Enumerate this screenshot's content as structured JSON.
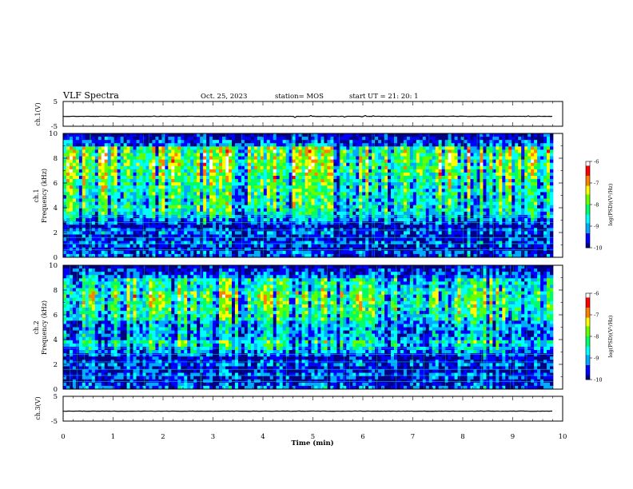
{
  "header": {
    "title": "VLF Spectra",
    "date": "Oct. 25, 2023",
    "station": "station= MOS",
    "start": "start  UT =   21: 20: 1"
  },
  "chart_data": [
    {
      "type": "line",
      "name": "ch1-voltage",
      "ylabel": "ch.1(V)",
      "ylim": [
        -5,
        5
      ],
      "yticks": [
        "5",
        "-5"
      ],
      "xlim": [
        0,
        10
      ],
      "baseline": -1.0
    },
    {
      "type": "heatmap",
      "name": "ch1-spectrogram",
      "ylabel": "ch.1 Frequency (kHz)",
      "ylabel_top": "ch.1",
      "ylabel_bottom": "Frequency (kHz)",
      "ylim": [
        0,
        10
      ],
      "yticks": [
        "0",
        "2",
        "4",
        "6",
        "8",
        "10"
      ],
      "xlim": [
        0,
        10
      ],
      "colorbar": {
        "label": "log(PSD)(V²/Hz)",
        "ticks": [
          "-6",
          "-7",
          "-8",
          "-9",
          "-10"
        ],
        "range": [
          -10,
          -6
        ]
      }
    },
    {
      "type": "heatmap",
      "name": "ch2-spectrogram",
      "ylabel": "ch.2 Frequency (kHz)",
      "ylabel_top": "ch.2",
      "ylabel_bottom": "Frequency (kHz)",
      "ylim": [
        0,
        10
      ],
      "yticks": [
        "0",
        "2",
        "4",
        "6",
        "8",
        "10"
      ],
      "xlim": [
        0,
        10
      ],
      "colorbar": {
        "label": "log(PSD)(V²/Hz)",
        "ticks": [
          "-6",
          "-7",
          "-8",
          "-9",
          "-10"
        ],
        "range": [
          -10,
          -6
        ]
      }
    },
    {
      "type": "line",
      "name": "ch3-voltage",
      "ylabel": "ch.3(V)",
      "ylim": [
        -5,
        5
      ],
      "yticks": [
        "5",
        "-5"
      ],
      "xlim": [
        0,
        10
      ],
      "baseline": -1.0
    }
  ],
  "xaxis": {
    "label": "Time  (min)",
    "ticks": [
      "0",
      "1",
      "2",
      "3",
      "4",
      "5",
      "6",
      "7",
      "8",
      "9",
      "10"
    ]
  },
  "colors": {
    "colormap": [
      "#000080",
      "#0000ff",
      "#00aaff",
      "#00ffff",
      "#00ff66",
      "#66ff00",
      "#ffff00",
      "#ff8000",
      "#ff0000",
      "#ffffff"
    ]
  }
}
